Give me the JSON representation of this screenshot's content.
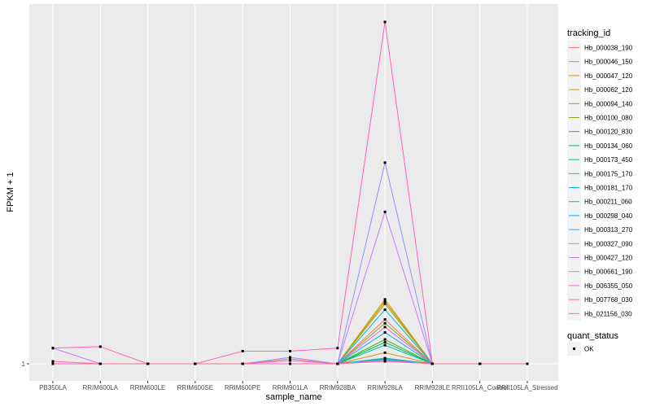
{
  "chart_data": {
    "type": "line",
    "title": "",
    "xlabel": "sample_name",
    "ylabel": "FPKM + 1",
    "y_scale": "log10",
    "y_ticks": [
      "1"
    ],
    "y_tick_values": [
      1
    ],
    "ylim": [
      1,
      8.0
    ],
    "grid": true,
    "legend_placement": "right",
    "categories": [
      "PB350LA",
      "RRIM600LA",
      "RRIM600LE",
      "RRIM600SE",
      "RRIM600PE",
      "RRIM901LA",
      "RRIM928BA",
      "RRIM928LA",
      "RRIM928LE",
      "RRII105LA_Control",
      "RRII105LA_Stressed"
    ],
    "legend_title": "tracking_id",
    "series": [
      {
        "name": "Hb_000038_190",
        "color": "#F8766D",
        "values": [
          1,
          1,
          1,
          1,
          1,
          1.03,
          1,
          1.31,
          1,
          1,
          1
        ]
      },
      {
        "name": "Hb_000046_150",
        "color": "#EA8331",
        "values": [
          1,
          1,
          1,
          1,
          1,
          1,
          1,
          1.07,
          1,
          1,
          1
        ]
      },
      {
        "name": "Hb_000047_120",
        "color": "#D89000",
        "values": [
          1,
          1,
          1,
          1,
          1,
          1,
          1,
          1.48,
          1,
          1,
          1
        ]
      },
      {
        "name": "Hb_000062_120",
        "color": "#C09B00",
        "values": [
          1,
          1,
          1,
          1,
          1,
          1,
          1,
          1.46,
          1,
          1,
          1
        ]
      },
      {
        "name": "Hb_000094_140",
        "color": "#A3A500",
        "values": [
          1,
          1,
          1,
          1,
          1,
          1,
          1,
          1.44,
          1,
          1,
          1
        ]
      },
      {
        "name": "Hb_000100_080",
        "color": "#7CAE00",
        "values": [
          1,
          1,
          1,
          1,
          1,
          1,
          1,
          1.28,
          1,
          1,
          1
        ]
      },
      {
        "name": "Hb_000120_830",
        "color": "#39B600",
        "values": [
          1,
          1,
          1,
          1,
          1,
          1,
          1,
          1.16,
          1,
          1,
          1
        ]
      },
      {
        "name": "Hb_000134_060",
        "color": "#00BB4E",
        "values": [
          1,
          1,
          1,
          1,
          1,
          1,
          1,
          1.14,
          1,
          1,
          1
        ]
      },
      {
        "name": "Hb_000173_450",
        "color": "#00BF7D",
        "values": [
          1,
          1,
          1,
          1,
          1,
          1,
          1,
          1.035,
          1,
          1,
          1
        ]
      },
      {
        "name": "Hb_000175_170",
        "color": "#00C1A3",
        "values": [
          1,
          1,
          1,
          1,
          1,
          1,
          1,
          1.12,
          1,
          1,
          1
        ]
      },
      {
        "name": "Hb_000181_170",
        "color": "#00BFC4",
        "values": [
          1,
          1,
          1,
          1,
          1,
          1,
          1,
          1.03,
          1,
          1,
          1
        ]
      },
      {
        "name": "Hb_000211_060",
        "color": "#00BAE0",
        "values": [
          1,
          1,
          1,
          1,
          1,
          1,
          1,
          1.39,
          1,
          1,
          1
        ]
      },
      {
        "name": "Hb_000298_040",
        "color": "#00B0F6",
        "values": [
          1,
          1,
          1,
          1,
          1,
          1,
          1,
          1.21,
          1,
          1,
          1
        ]
      },
      {
        "name": "Hb_000313_270",
        "color": "#35A2FF",
        "values": [
          1,
          1,
          1,
          1,
          1,
          1,
          1,
          1.025,
          1,
          1,
          1
        ]
      },
      {
        "name": "Hb_000327_090",
        "color": "#9590FF",
        "values": [
          1,
          1,
          1,
          1,
          1,
          1.04,
          1,
          3.4,
          1,
          1,
          1
        ]
      },
      {
        "name": "Hb_000427_120",
        "color": "#C77CFF",
        "values": [
          1.1,
          1,
          1,
          1,
          1,
          1,
          1,
          2.52,
          1,
          1,
          1
        ]
      },
      {
        "name": "Hb_000661_190",
        "color": "#E76BF3",
        "values": [
          1,
          1,
          1,
          1,
          1,
          1,
          1,
          1.25,
          1,
          1,
          1
        ]
      },
      {
        "name": "Hb_006355_050",
        "color": "#FA62DB",
        "values": [
          1,
          1,
          1,
          1,
          1,
          1,
          1,
          1.02,
          1,
          1,
          1
        ]
      },
      {
        "name": "Hb_007768_030",
        "color": "#FF62BC",
        "values": [
          1.1,
          1.11,
          1,
          1,
          1.08,
          1.08,
          1.1,
          8.0,
          1,
          1,
          1
        ]
      },
      {
        "name": "Hb_021156_030",
        "color": "#FF6C91",
        "values": [
          1.015,
          1,
          1,
          1,
          1,
          1.02,
          1,
          1.015,
          1,
          1,
          1
        ]
      }
    ],
    "shape_legend": {
      "title": "quant_status",
      "items": [
        {
          "label": "OK",
          "shape": "square",
          "color": "#000000"
        }
      ]
    }
  }
}
